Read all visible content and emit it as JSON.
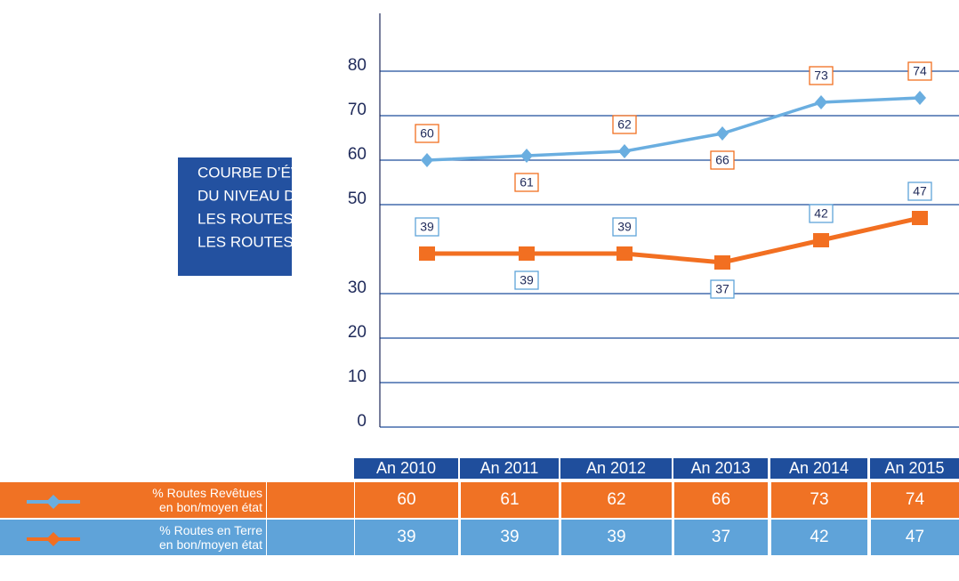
{
  "chart_data": {
    "type": "line",
    "title_lines": [
      "COURBE D’ÉVOLUTION",
      "DU NIVEAU  DE SERVICE SUR",
      "LES ROUTES REVÊTUE ET",
      "LES ROUTES EN TERRE"
    ],
    "categories": [
      "An 2010",
      "An 2011",
      "An 2012",
      "An 2013",
      "An 2014",
      "An 2015"
    ],
    "series": [
      {
        "name": "% Routes Revêtues en bon/moyen état",
        "color": "#6aaee0",
        "values": [
          60,
          61,
          62,
          66,
          73,
          74
        ]
      },
      {
        "name": "% Routes en Terre en bon/moyen état",
        "color": "#f26f21",
        "values": [
          39,
          39,
          39,
          37,
          42,
          47
        ]
      }
    ],
    "ylim": [
      0,
      93
    ],
    "yticks": [
      0,
      10,
      20,
      30,
      50,
      60,
      70,
      80
    ],
    "grid": true
  }
}
